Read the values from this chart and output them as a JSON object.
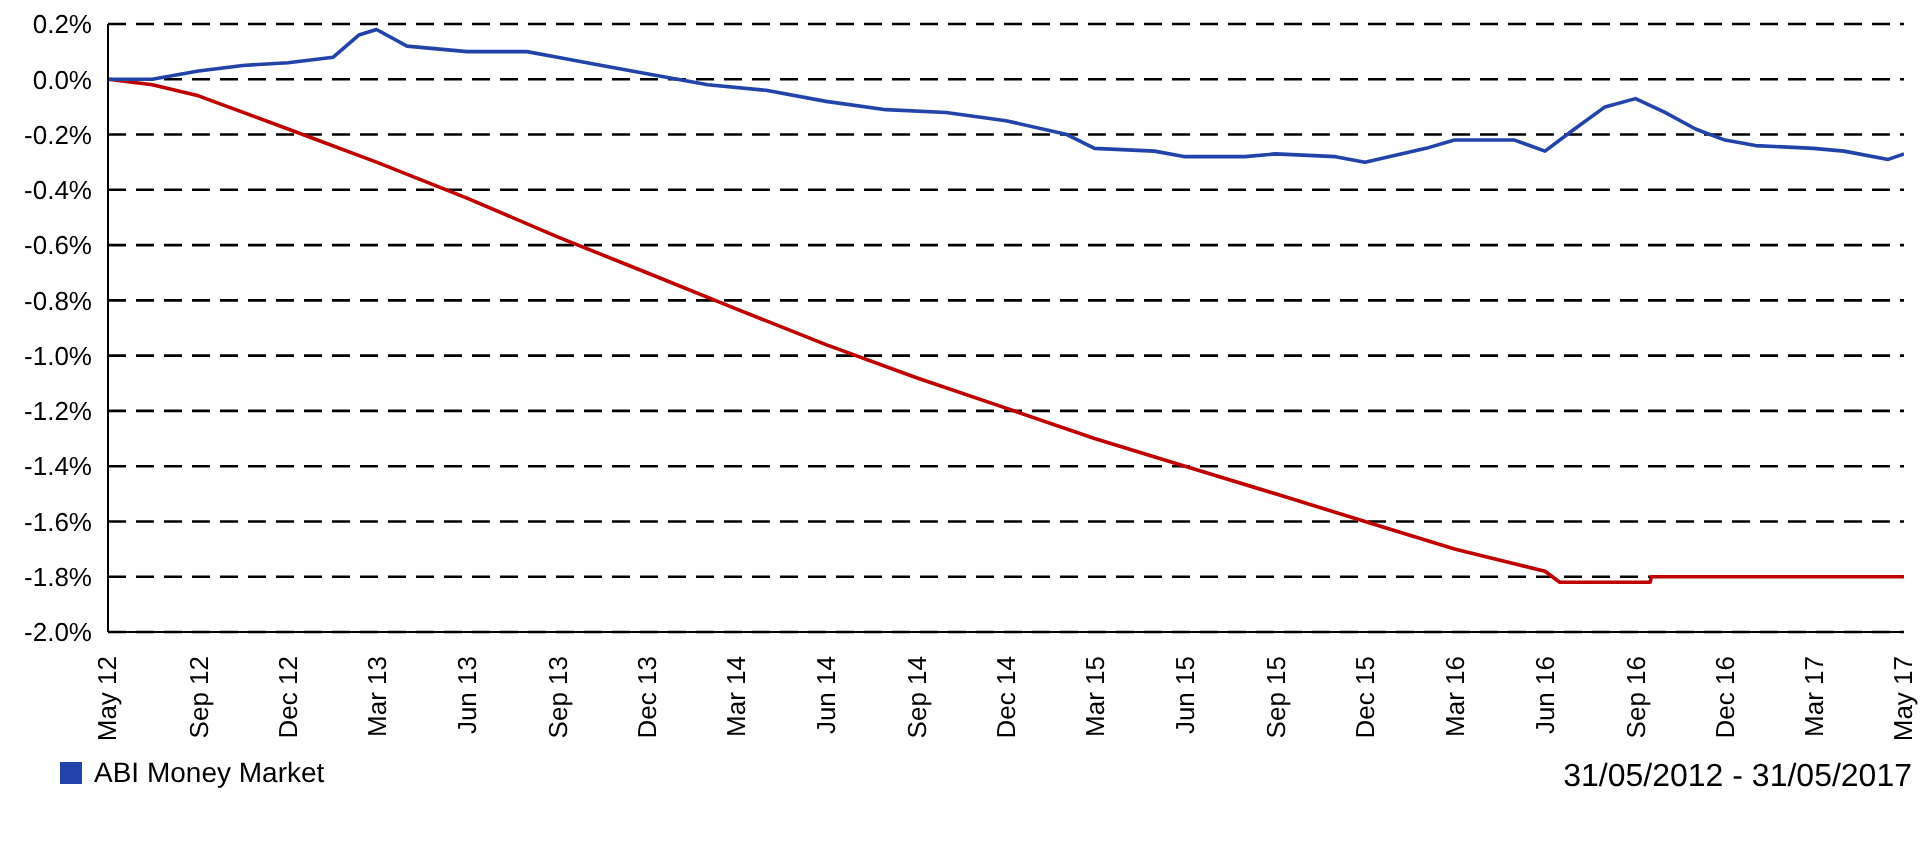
{
  "chart_data": {
    "type": "line",
    "annotations": [
      "31/05/2012 - 31/05/2017"
    ],
    "series": [
      {
        "color": "#c00000",
        "x": [
          "2012-05-31",
          "2012-07-15",
          "2012-08-31",
          "2012-11-30",
          "2013-02-28",
          "2013-05-31",
          "2013-08-31",
          "2013-11-30",
          "2014-02-28",
          "2014-05-31",
          "2014-08-31",
          "2014-11-30",
          "2015-02-28",
          "2015-05-31",
          "2015-08-31",
          "2015-11-30",
          "2016-02-29",
          "2016-05-31",
          "2016-06-15",
          "2016-09-15",
          "2016-09-16",
          "2017-05-31"
        ],
        "values": [
          0,
          -0.02,
          -0.06,
          -0.18,
          -0.3,
          -0.43,
          -0.57,
          -0.7,
          -0.83,
          -0.96,
          -1.08,
          -1.19,
          -1.3,
          -1.4,
          -1.5,
          -1.6,
          -1.7,
          -1.78,
          -1.82,
          -1.82,
          -1.8,
          -1.8
        ]
      },
      {
        "name": "ABI Money Market",
        "color": "#2244aa",
        "x": [
          "2012-05-31",
          "2012-07-15",
          "2012-08-31",
          "2012-10-15",
          "2012-11-30",
          "2013-01-15",
          "2013-02-10",
          "2013-02-28",
          "2013-03-31",
          "2013-05-31",
          "2013-07-31",
          "2013-08-31",
          "2013-10-15",
          "2013-11-30",
          "2014-01-31",
          "2014-03-31",
          "2014-05-31",
          "2014-07-31",
          "2014-09-30",
          "2014-11-30",
          "2015-01-31",
          "2015-02-28",
          "2015-04-30",
          "2015-05-31",
          "2015-07-31",
          "2015-08-31",
          "2015-10-31",
          "2015-11-30",
          "2016-01-31",
          "2016-02-29",
          "2016-04-30",
          "2016-05-31",
          "2016-06-30",
          "2016-07-31",
          "2016-08-31",
          "2016-09-30",
          "2016-10-31",
          "2016-11-30",
          "2016-12-31",
          "2017-02-28",
          "2017-03-31",
          "2017-05-15",
          "2017-05-31"
        ],
        "values": [
          0,
          0,
          0.03,
          0.05,
          0.06,
          0.08,
          0.16,
          0.18,
          0.12,
          0.1,
          0.1,
          0.08,
          0.05,
          0.02,
          -0.02,
          -0.04,
          -0.08,
          -0.11,
          -0.12,
          -0.15,
          -0.2,
          -0.25,
          -0.26,
          -0.28,
          -0.28,
          -0.27,
          -0.28,
          -0.3,
          -0.25,
          -0.22,
          -0.22,
          -0.26,
          -0.18,
          -0.1,
          -0.07,
          -0.12,
          -0.18,
          -0.22,
          -0.24,
          -0.25,
          -0.26,
          -0.29,
          -0.27
        ]
      }
    ],
    "xlim": [
      "2012-05-31",
      "2017-05-31"
    ],
    "xticks": [
      {
        "value": "2012-05-31",
        "label": "May 12"
      },
      {
        "value": "2012-09-01",
        "label": "Sep 12"
      },
      {
        "value": "2012-12-01",
        "label": "Dec 12"
      },
      {
        "value": "2013-03-01",
        "label": "Mar 13"
      },
      {
        "value": "2013-06-01",
        "label": "Jun 13"
      },
      {
        "value": "2013-09-01",
        "label": "Sep 13"
      },
      {
        "value": "2013-12-01",
        "label": "Dec 13"
      },
      {
        "value": "2014-03-01",
        "label": "Mar 14"
      },
      {
        "value": "2014-06-01",
        "label": "Jun 14"
      },
      {
        "value": "2014-09-01",
        "label": "Sep 14"
      },
      {
        "value": "2014-12-01",
        "label": "Dec 14"
      },
      {
        "value": "2015-03-01",
        "label": "Mar 15"
      },
      {
        "value": "2015-06-01",
        "label": "Jun 15"
      },
      {
        "value": "2015-09-01",
        "label": "Sep 15"
      },
      {
        "value": "2015-12-01",
        "label": "Dec 15"
      },
      {
        "value": "2016-03-01",
        "label": "Mar 16"
      },
      {
        "value": "2016-06-01",
        "label": "Jun 16"
      },
      {
        "value": "2016-09-01",
        "label": "Sep 16"
      },
      {
        "value": "2016-12-01",
        "label": "Dec 16"
      },
      {
        "value": "2017-03-01",
        "label": "Mar 17"
      },
      {
        "value": "2017-05-31",
        "label": "May 17"
      }
    ],
    "ylim": [
      -2.0,
      0.2
    ],
    "yticks": [
      {
        "value": 0.2,
        "label": "0.2%"
      },
      {
        "value": 0,
        "label": "0.0%"
      },
      {
        "value": -0.2,
        "label": "-0.2%"
      },
      {
        "value": -0.4,
        "label": "-0.4%"
      },
      {
        "value": -0.6,
        "label": "-0.6%"
      },
      {
        "value": -0.8,
        "label": "-0.8%"
      },
      {
        "value": -1.0,
        "label": "-1.0%"
      },
      {
        "value": -1.2,
        "label": "-1.2%"
      },
      {
        "value": -1.4,
        "label": "-1.4%"
      },
      {
        "value": -1.6,
        "label": "-1.6%"
      },
      {
        "value": -1.8,
        "label": "-1.8%"
      },
      {
        "value": -2.0,
        "label": "-2.0%"
      }
    ],
    "grid": "y",
    "legend": "bottom left",
    "marker": "none",
    "line_style": "solid"
  }
}
